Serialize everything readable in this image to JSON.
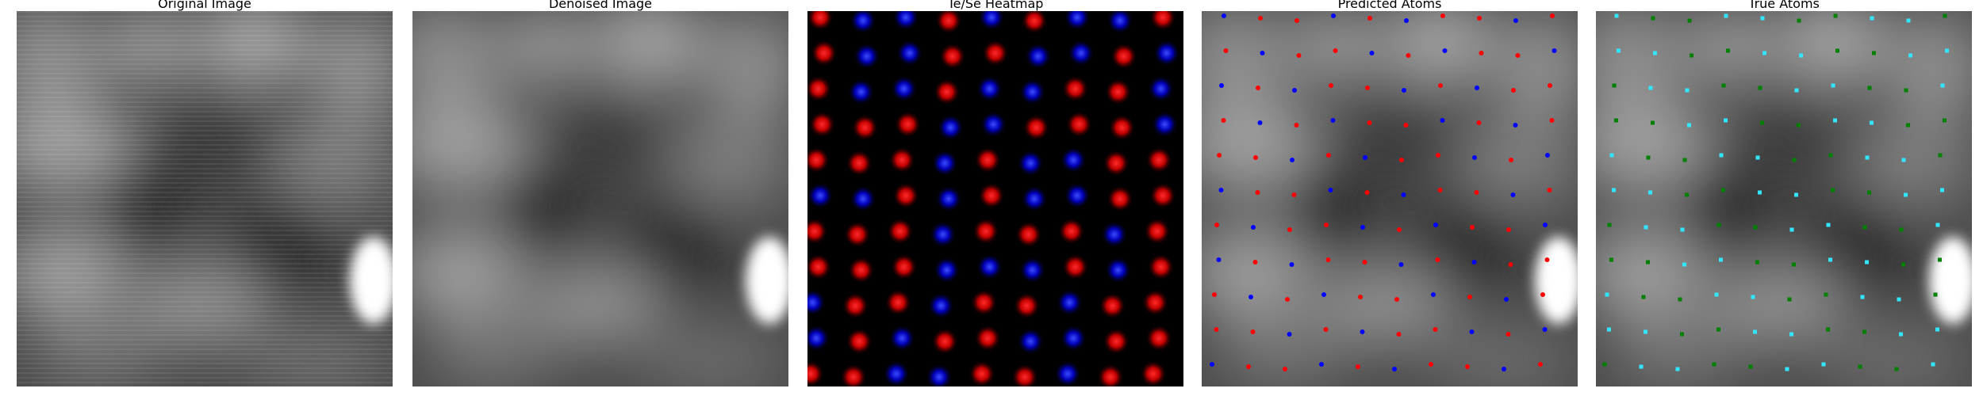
{
  "figure": {
    "panels": [
      {
        "id": "original",
        "title": "Original Image"
      },
      {
        "id": "denoised",
        "title": "Denoised Image"
      },
      {
        "id": "heatmap",
        "title": "Te/Se Heatmap"
      },
      {
        "id": "predicted",
        "title": "Predicted Atoms"
      },
      {
        "id": "true",
        "title": "True Atoms"
      }
    ]
  },
  "colors": {
    "te_heat": "#ff1a1a",
    "se_heat": "#1a2cff",
    "predicted_red": "#ff0000",
    "predicted_blue": "#0000ff",
    "true_cyan": "#33e6ff",
    "true_green": "#008000"
  }
}
